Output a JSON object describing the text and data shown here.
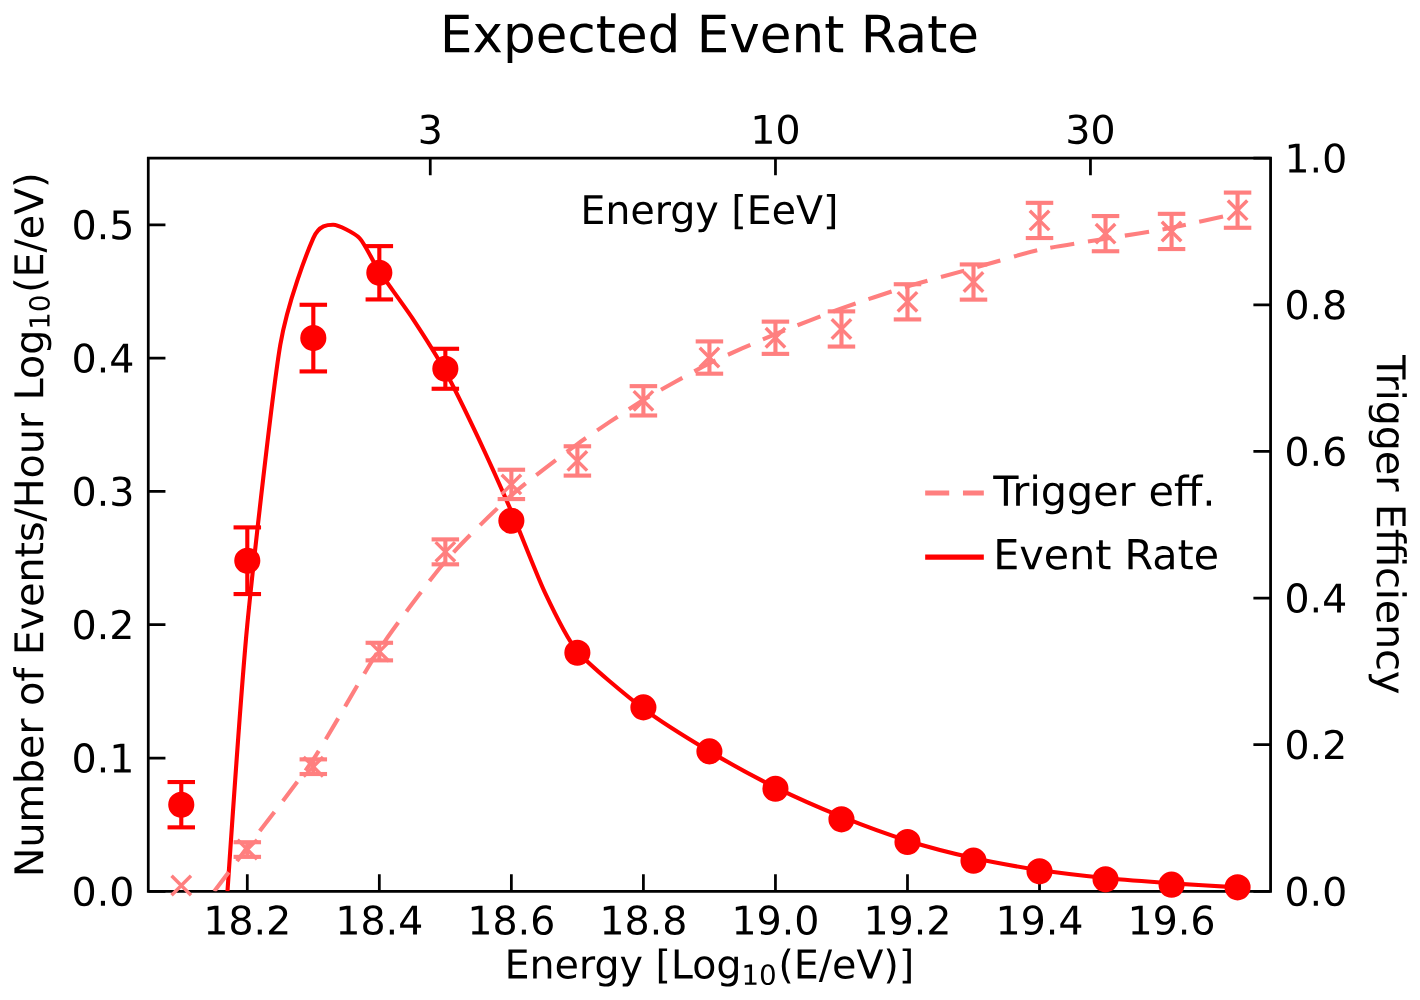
{
  "chart_data": {
    "type": "scatter",
    "title": "Expected Event Rate",
    "xlabel": "Energy [Log$_{10}$(E/eV)]",
    "ylabel": "Number of Events/Hour Log$_{10}$(E/eV)",
    "y2label": "Trigger Efficiency",
    "x2label": "Energy [EeV]",
    "xlim": [
      18.05,
      19.75
    ],
    "ylim": [
      0,
      0.55
    ],
    "y2lim": [
      0,
      1.0
    ],
    "x2lim": [
      1.122,
      56.23
    ],
    "log": "x2",
    "xticks": [
      {
        "value": 18.2,
        "label": "18.2"
      },
      {
        "value": 18.4,
        "label": "18.4"
      },
      {
        "value": 18.6,
        "label": "18.6"
      },
      {
        "value": 18.8,
        "label": "18.8"
      },
      {
        "value": 19.0,
        "label": "19.0"
      },
      {
        "value": 19.2,
        "label": "19.2"
      },
      {
        "value": 19.4,
        "label": "19.4"
      },
      {
        "value": 19.6,
        "label": "19.6"
      }
    ],
    "yticks": [
      {
        "value": 0,
        "label": "0.0"
      },
      0.1,
      0.2,
      0.3,
      0.4,
      0.5
    ],
    "y2ticks": [
      {
        "value": 0,
        "label": "0.0"
      },
      0.2,
      0.4,
      0.6,
      0.8,
      {
        "value": 1,
        "label": "1.0"
      }
    ],
    "x2ticks": [
      3,
      10,
      30
    ],
    "legend": "right",
    "grid": false,
    "series": [
      {
        "name": "Trigger eff.",
        "type": "line",
        "axis": "y2",
        "color": "#ff7f7f",
        "line_style": "dashed",
        "marker": "none",
        "x": [
          18.15,
          18.2,
          18.3,
          18.4,
          18.5,
          18.6,
          18.7,
          18.8,
          18.9,
          19.0,
          19.1,
          19.2,
          19.3,
          19.4,
          19.5,
          19.6,
          19.7
        ],
        "values": [
          0,
          0.06,
          0.18,
          0.33,
          0.45,
          0.54,
          0.61,
          0.67,
          0.72,
          0.76,
          0.795,
          0.825,
          0.85,
          0.875,
          0.89,
          0.905,
          0.925
        ]
      },
      {
        "axis": "y2",
        "color": "#ff7f7f",
        "marker": "cross",
        "x": [
          18.1,
          18.2,
          18.3,
          18.4,
          18.5,
          18.6,
          18.7,
          18.8,
          18.9,
          19.0,
          19.1,
          19.2,
          19.3,
          19.4,
          19.5,
          19.6,
          19.7
        ],
        "values": [
          0.008,
          0.057,
          0.17,
          0.327,
          0.463,
          0.555,
          0.587,
          0.669,
          0.728,
          0.755,
          0.767,
          0.804,
          0.831,
          0.915,
          0.897,
          0.9,
          0.929
        ],
        "errors": [
          null,
          0.01,
          0.01,
          0.012,
          0.017,
          0.02,
          0.02,
          0.02,
          0.022,
          0.022,
          0.024,
          0.024,
          0.024,
          0.024,
          0.024,
          0.024,
          0.024
        ]
      },
      {
        "name": "Event Rate",
        "type": "line",
        "axis": "y",
        "color": "#ff0000",
        "line_style": "solid",
        "marker": "none",
        "x": [
          18.17,
          18.2,
          18.25,
          18.3,
          18.33,
          18.37,
          18.4,
          18.45,
          18.5,
          18.55,
          18.6,
          18.65,
          18.7,
          18.8,
          18.9,
          19.0,
          19.1,
          19.2,
          19.3,
          19.4,
          19.5,
          19.6,
          19.7
        ],
        "values": [
          0,
          0.2,
          0.41,
          0.49,
          0.5,
          0.49,
          0.465,
          0.43,
          0.39,
          0.34,
          0.285,
          0.225,
          0.18,
          0.137,
          0.105,
          0.078,
          0.056,
          0.038,
          0.025,
          0.016,
          0.01,
          0.006,
          0.003
        ]
      },
      {
        "axis": "y",
        "color": "#ff0000",
        "marker": "circle",
        "x": [
          18.1,
          18.2,
          18.3,
          18.4,
          18.5,
          18.6,
          18.7,
          18.8,
          18.9,
          19.0,
          19.1,
          19.2,
          19.3,
          19.4,
          19.5,
          19.6,
          19.7
        ],
        "values": [
          0.065,
          0.248,
          0.415,
          0.464,
          0.392,
          0.278,
          0.179,
          0.138,
          0.105,
          0.077,
          0.054,
          0.037,
          0.023,
          0.015,
          0.009,
          0.005,
          0.003
        ],
        "errors": [
          0.017,
          0.025,
          0.025,
          0.02,
          0.015,
          null,
          null,
          null,
          null,
          null,
          null,
          null,
          null,
          null,
          null,
          null,
          null
        ]
      }
    ]
  }
}
